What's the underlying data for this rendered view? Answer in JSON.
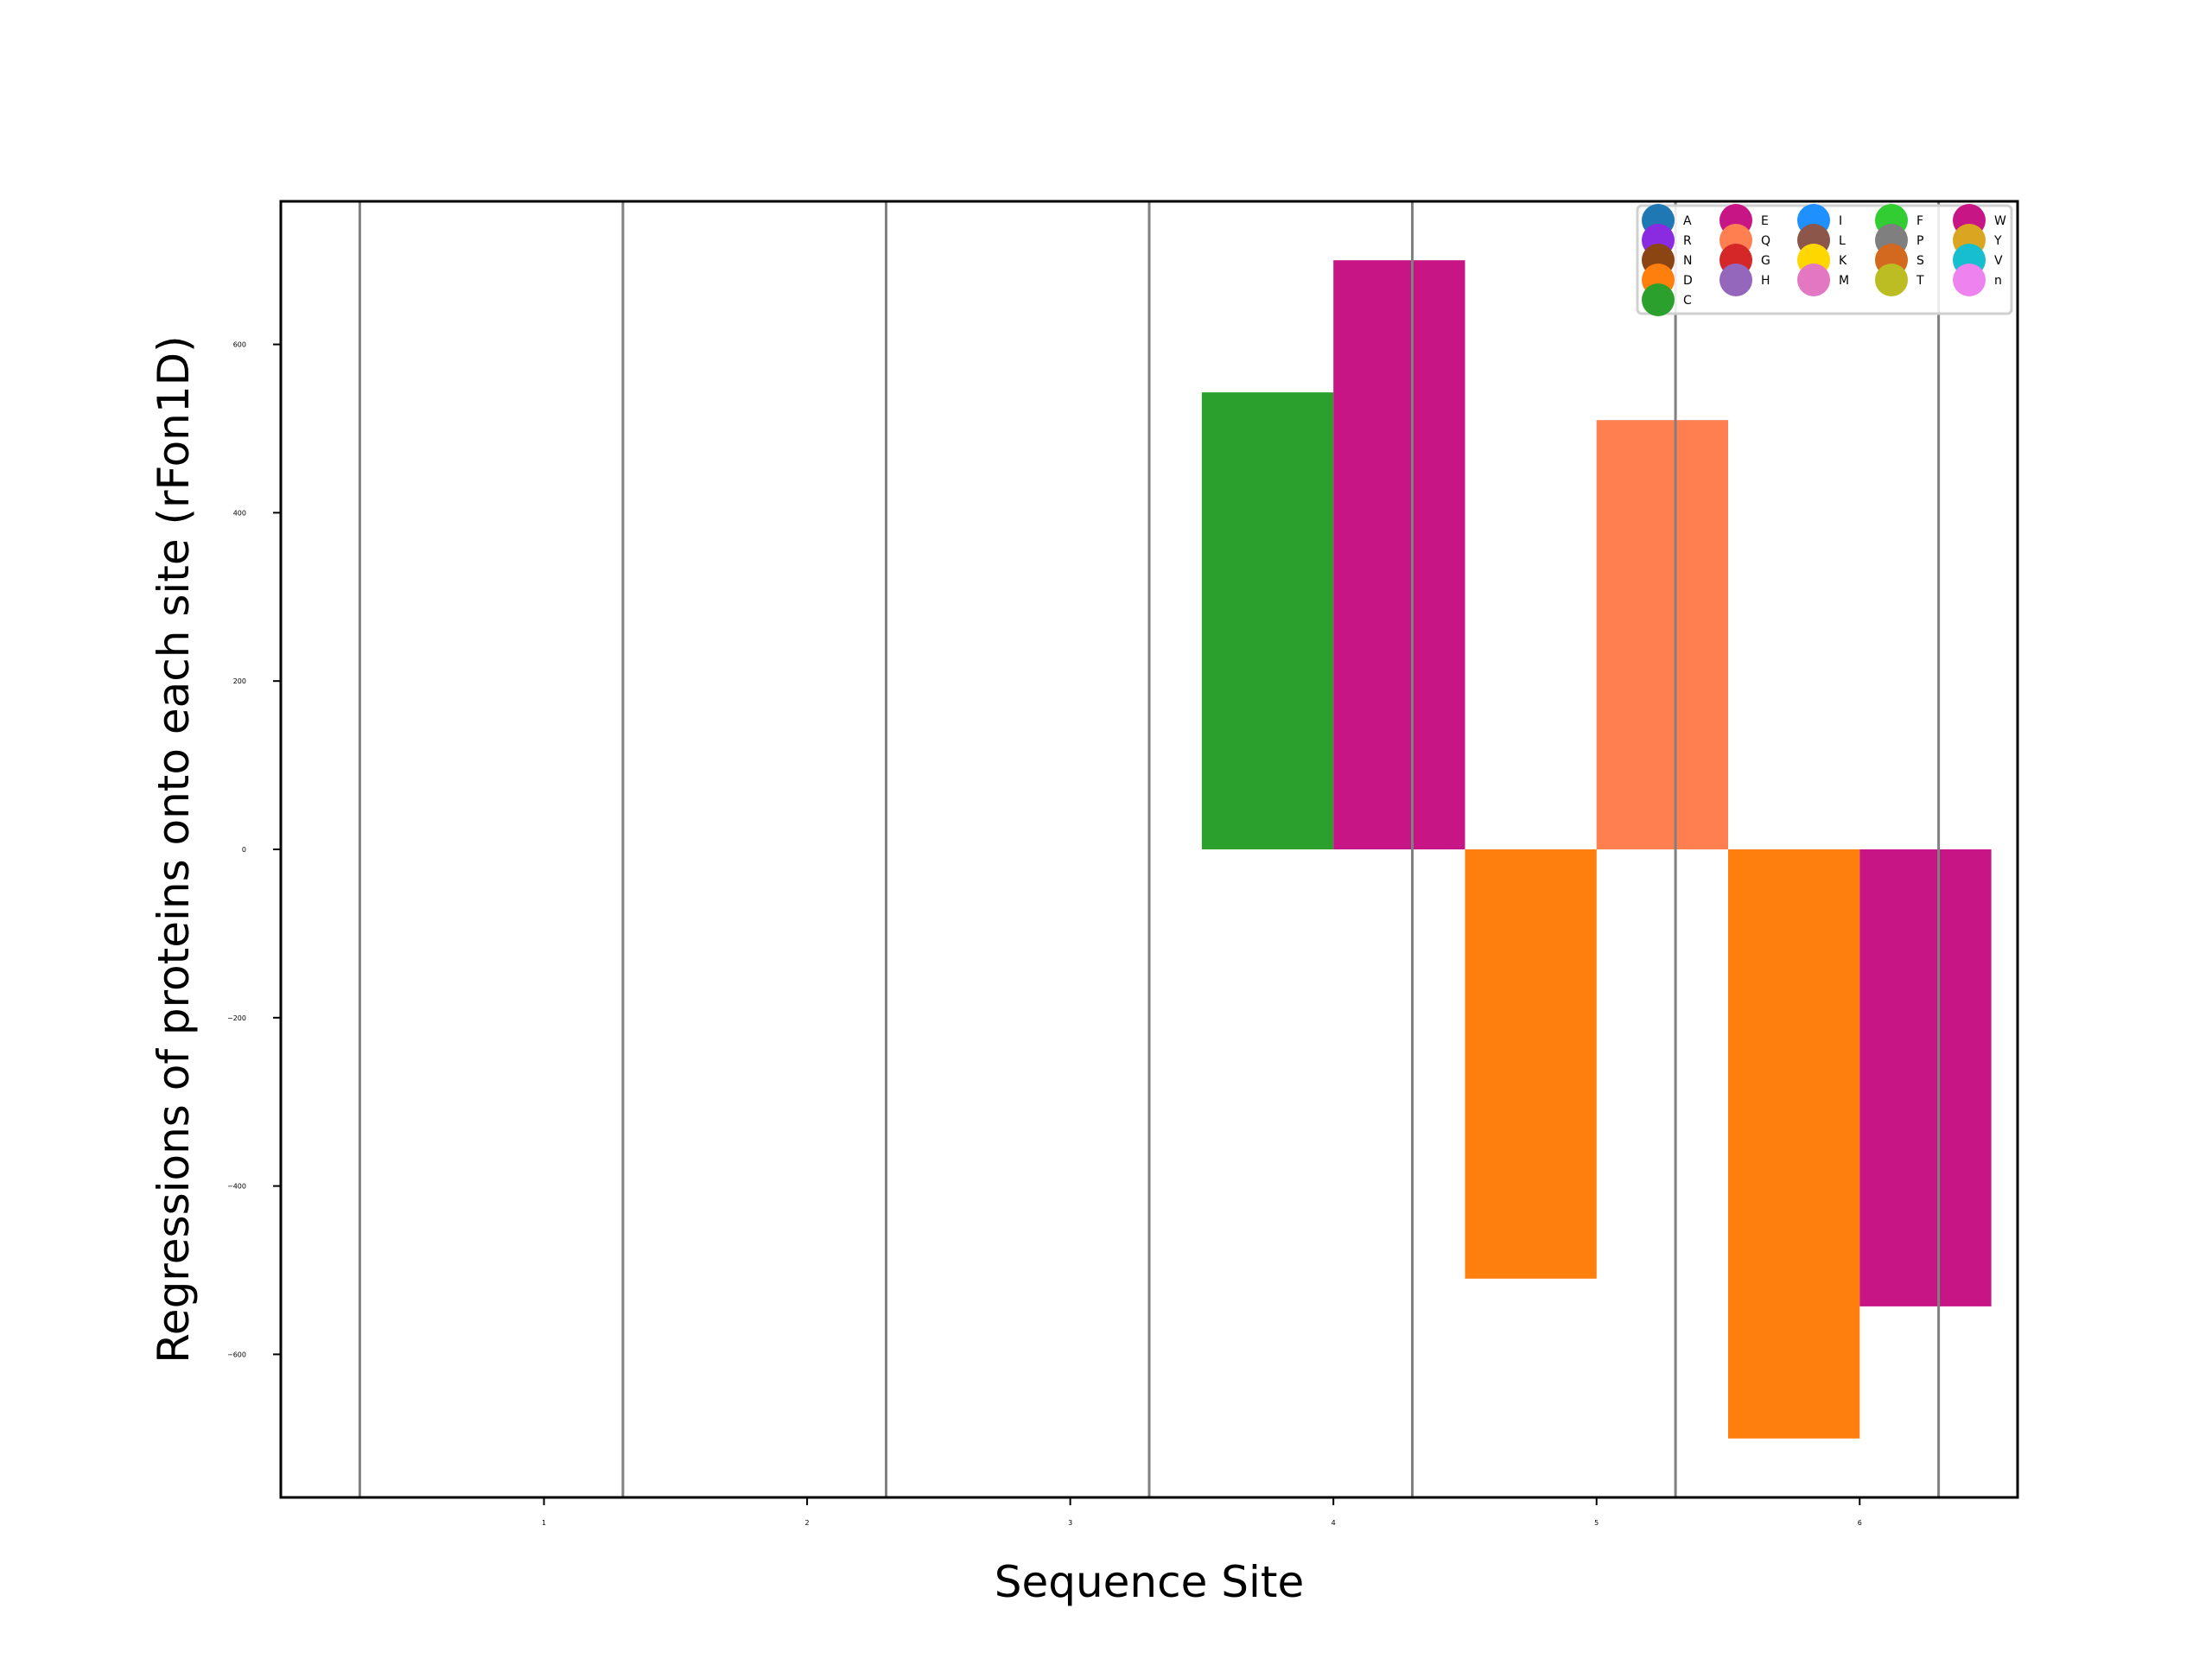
{
  "chart_data": {
    "type": "bar",
    "xlabel": "Sequence Site",
    "ylabel": "Regressions of proteins onto each site (rFon1D)",
    "xticks": [
      "1",
      "2",
      "3",
      "4",
      "5",
      "6"
    ],
    "yticks": [
      "600",
      "400",
      "200",
      "0",
      "−200",
      "−400",
      "−600"
    ],
    "ytick_values": [
      600,
      400,
      200,
      0,
      -200,
      -400,
      -600
    ],
    "xlim": [
      0.0,
      6.6
    ],
    "ylim": [
      -770,
      770
    ],
    "grid": false,
    "site_separators": [
      0.3,
      1.3,
      2.3,
      3.3,
      4.3,
      5.3,
      6.3
    ],
    "bars": [
      {
        "site": 4,
        "offset": -0.25,
        "residue": "C",
        "value": 543
      },
      {
        "site": 4,
        "offset": 0.25,
        "residue": "E",
        "value": 700
      },
      {
        "site": 5,
        "offset": -0.25,
        "residue": "D",
        "value": -510
      },
      {
        "site": 5,
        "offset": 0.25,
        "residue": "Q",
        "value": 510
      },
      {
        "site": 6,
        "offset": -0.25,
        "residue": "D",
        "value": -700
      },
      {
        "site": 6,
        "offset": 0.25,
        "residue": "E",
        "value": -543
      }
    ],
    "bar_width": 0.5,
    "legend": {
      "placement": "top-right",
      "columns": [
        [
          {
            "label": "A",
            "color": "#1f77b4"
          },
          {
            "label": "R",
            "color": "#8a2be2"
          },
          {
            "label": "N",
            "color": "#8b4513"
          },
          {
            "label": "D",
            "color": "#ff7f0e"
          },
          {
            "label": "C",
            "color": "#2ca02c"
          }
        ],
        [
          {
            "label": "E",
            "color": "#c71585"
          },
          {
            "label": "Q",
            "color": "#ff7f50"
          },
          {
            "label": "G",
            "color": "#d62728"
          },
          {
            "label": "H",
            "color": "#9467bd"
          }
        ],
        [
          {
            "label": "I",
            "color": "#1e90ff"
          },
          {
            "label": "L",
            "color": "#8c564b"
          },
          {
            "label": "K",
            "color": "#ffd700"
          },
          {
            "label": "M",
            "color": "#e377c2"
          }
        ],
        [
          {
            "label": "F",
            "color": "#32cd32"
          },
          {
            "label": "P",
            "color": "#7f7f7f"
          },
          {
            "label": "S",
            "color": "#d2691e"
          },
          {
            "label": "T",
            "color": "#bcbd22"
          }
        ],
        [
          {
            "label": "W",
            "color": "#c71585"
          },
          {
            "label": "Y",
            "color": "#daa520"
          },
          {
            "label": "V",
            "color": "#17becf"
          },
          {
            "label": "n",
            "color": "#ee82ee"
          }
        ]
      ]
    }
  }
}
